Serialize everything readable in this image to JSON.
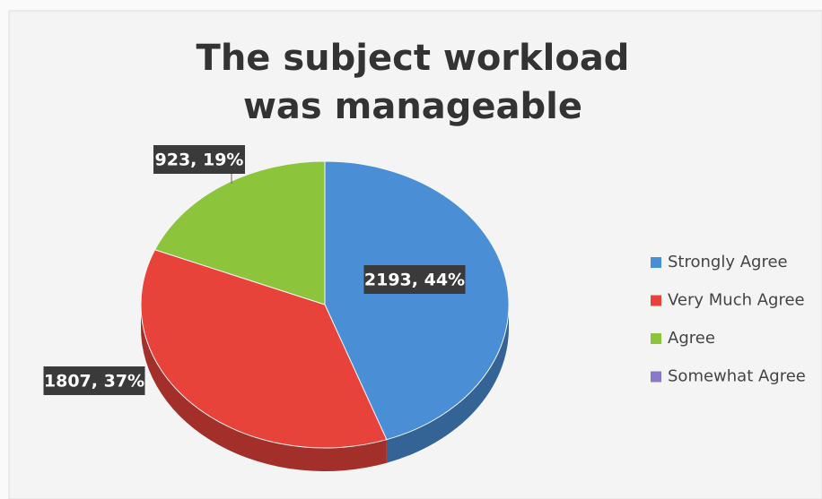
{
  "chart_data": {
    "type": "pie",
    "title": "The subject workload was manageable",
    "categories": [
      "Strongly Agree",
      "Very Much Agree",
      "Agree",
      "Somewhat Agree"
    ],
    "values": [
      2193,
      1807,
      923,
      0
    ],
    "value_labels": [
      "2193, 44%",
      "1807, 37%",
      "923, 19%",
      null
    ],
    "colors": [
      "#4a8fd6",
      "#e8433a",
      "#8cc43c",
      "#8a78c8"
    ],
    "legend": "right"
  }
}
